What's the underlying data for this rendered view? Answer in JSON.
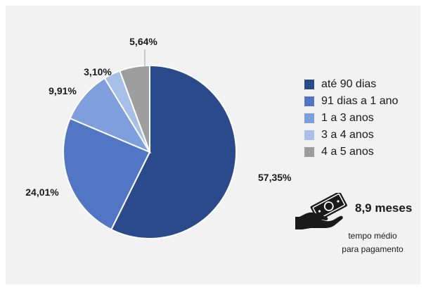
{
  "chart_data": {
    "type": "pie",
    "categories": [
      "até 90 dias",
      "91 dias a 1 ano",
      "1 a 3 anos",
      "3 a 4 anos",
      "4 a 5 anos"
    ],
    "values": [
      57.35,
      24.01,
      9.91,
      3.1,
      5.64
    ],
    "value_labels": [
      "57,35%",
      "24,01%",
      "9,91%",
      "3,10%",
      "5,64%"
    ],
    "colors": [
      "#2b4a8c",
      "#5177c4",
      "#7f9fdc",
      "#a8bfe8",
      "#9e9e9e"
    ],
    "start_angle_deg": 0,
    "direction": "clockwise",
    "legend_position": "right"
  },
  "annotation": {
    "icon": "money-hand-icon",
    "value": "8,9 meses",
    "caption_line1": "tempo médio",
    "caption_line2": "para pagamento"
  }
}
